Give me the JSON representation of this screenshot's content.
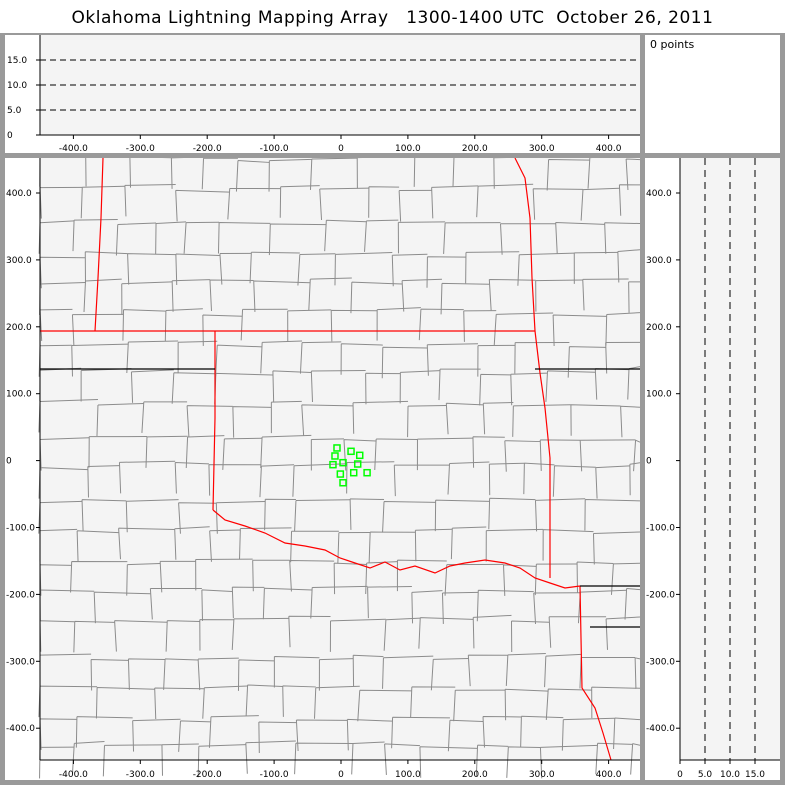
{
  "title": "Oklahoma Lightning Mapping Array   1300-1400 UTC  October 26, 2011",
  "point_count_label": "0 points",
  "colors": {
    "background": "#9a9a9a",
    "plot_bg": "#f4f4f4",
    "county": "#8c8c8c",
    "state_border": "#ff0000",
    "source": "#00ff00"
  },
  "top_panel": {
    "x_ticks": [
      "-400.0",
      "-300.0",
      "-200.0",
      "-100.0",
      "0",
      "100.0",
      "200.0",
      "300.0",
      "400.0"
    ],
    "y_ticks": [
      "0",
      "5.0",
      "10.0",
      "15.0"
    ],
    "dashed_levels": [
      5,
      10,
      15
    ]
  },
  "map_panel": {
    "x_ticks": [
      "-400.0",
      "-300.0",
      "-200.0",
      "-100.0",
      "0",
      "100.0",
      "200.0",
      "300.0",
      "400.0"
    ],
    "y_ticks": [
      "400.0",
      "300.0",
      "200.0",
      "100.0",
      "0",
      "-100.0",
      "-200.0",
      "-300.0",
      "-400.0"
    ],
    "stations": [
      [
        -6,
        18
      ],
      [
        15,
        13
      ],
      [
        28,
        7
      ],
      [
        -9,
        6
      ],
      [
        3,
        -4
      ],
      [
        -12,
        -7
      ],
      [
        25,
        -6
      ],
      [
        -1,
        -21
      ],
      [
        19,
        -19
      ],
      [
        39,
        -19
      ],
      [
        3,
        -34
      ]
    ]
  },
  "side_panel": {
    "y_ticks": [
      "400.0",
      "300.0",
      "200.0",
      "100.0",
      "0",
      "-100.0",
      "-200.0",
      "-300.0",
      "-400.0"
    ],
    "x_ticks": [
      "0",
      "5.0",
      "10.0",
      "15.0"
    ],
    "dashed_levels": [
      5,
      10,
      15
    ]
  }
}
